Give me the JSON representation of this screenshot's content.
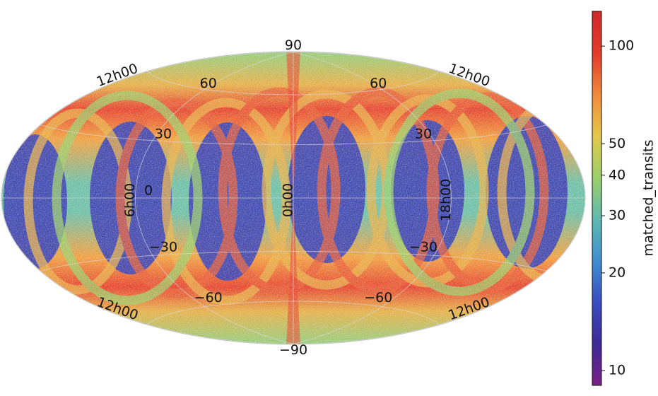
{
  "chart_data": {
    "type": "skymap",
    "projection": "hammer",
    "parallels": [
      90,
      60,
      30,
      0,
      {
        "value": -30,
        "label": "−30"
      },
      {
        "value": -60,
        "label": "−60"
      },
      {
        "value": -90,
        "label": "−90"
      }
    ],
    "meridians": [
      {
        "value": 6,
        "label": "6h00"
      },
      {
        "value": 0,
        "label": "0h00"
      },
      {
        "value": 18,
        "label": "18h00"
      },
      {
        "value": 12,
        "label": "12h00"
      }
    ],
    "grid": true,
    "colorbar": {
      "label": "matched_transits",
      "scale": "log",
      "lim": [
        9,
        128
      ],
      "ticks": [
        10,
        20,
        30,
        40,
        50,
        100
      ],
      "colors": [
        "#7b1f86",
        "#3d2a96",
        "#3b4cc0",
        "#3f8fd0",
        "#5fb9b0",
        "#9ccf6a",
        "#e3c84a",
        "#f08a3c",
        "#e23a2a",
        "#d02a2a"
      ]
    }
  }
}
